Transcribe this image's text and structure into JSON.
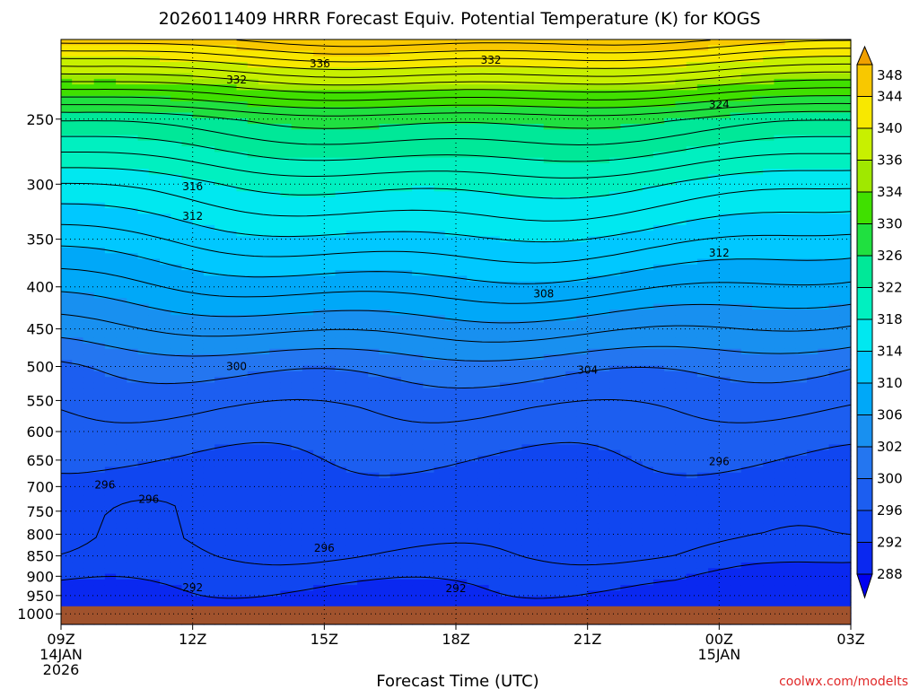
{
  "chart_data": {
    "type": "heatmap",
    "title": "2026011409 HRRR Forecast Equiv. Potential Temperature (K) for KOGS",
    "xlabel": "Forecast Time (UTC)",
    "ylabel": "",
    "x_ticks": [
      {
        "hour": 0,
        "lines": [
          "09Z",
          "14JAN",
          "2026"
        ]
      },
      {
        "hour": 3,
        "lines": [
          "12Z"
        ]
      },
      {
        "hour": 6,
        "lines": [
          "15Z"
        ]
      },
      {
        "hour": 9,
        "lines": [
          "18Z"
        ]
      },
      {
        "hour": 12,
        "lines": [
          "21Z"
        ]
      },
      {
        "hour": 15,
        "lines": [
          "00Z",
          "15JAN"
        ]
      },
      {
        "hour": 18,
        "lines": [
          "03Z"
        ]
      }
    ],
    "xlim_hours": [
      0,
      18
    ],
    "y_scale": "log",
    "y_ticks": [
      250,
      300,
      350,
      400,
      450,
      500,
      550,
      600,
      650,
      700,
      750,
      800,
      850,
      900,
      950,
      1000
    ],
    "ylim": [
      1030,
      200
    ],
    "surface_pressure_hpa": 979,
    "surface_color": "#a0522d",
    "colorbar": {
      "levels": [
        288,
        292,
        296,
        300,
        302,
        306,
        310,
        314,
        318,
        322,
        326,
        330,
        334,
        336,
        340,
        344,
        348
      ],
      "labels": [
        "288",
        "292",
        "296",
        "300",
        "302",
        "306",
        "310",
        "314",
        "318",
        "322",
        "326",
        "330",
        "334",
        "336",
        "340",
        "344",
        "348"
      ],
      "colors": [
        "#0000f0",
        "#0a28f0",
        "#1046f0",
        "#1c5ef0",
        "#2476f0",
        "#1890f0",
        "#00a8f8",
        "#00c8ff",
        "#00e8f0",
        "#00f0c0",
        "#00e898",
        "#20e040",
        "#40e000",
        "#a0e800",
        "#c8f000",
        "#f8e800",
        "#f8c800",
        "#f0a000"
      ]
    },
    "theta_e_profile_start": [
      {
        "p": 980,
        "theta_e": 291
      },
      {
        "p": 925,
        "theta_e": 292
      },
      {
        "p": 850,
        "theta_e": 294
      },
      {
        "p": 800,
        "theta_e": 295
      },
      {
        "p": 700,
        "theta_e": 295
      },
      {
        "p": 600,
        "theta_e": 297
      },
      {
        "p": 500,
        "theta_e": 300
      },
      {
        "p": 400,
        "theta_e": 307
      },
      {
        "p": 350,
        "theta_e": 311
      },
      {
        "p": 300,
        "theta_e": 316
      },
      {
        "p": 250,
        "theta_e": 324
      },
      {
        "p": 210,
        "theta_e": 340
      }
    ],
    "contour_labels": [
      {
        "text": "336",
        "hour": 5.9,
        "p": 214
      },
      {
        "text": "332",
        "hour": 9.8,
        "p": 212
      },
      {
        "text": "332",
        "hour": 4.0,
        "p": 224
      },
      {
        "text": "324",
        "hour": 15.0,
        "p": 240
      },
      {
        "text": "316",
        "hour": 3.0,
        "p": 302
      },
      {
        "text": "312",
        "hour": 3.0,
        "p": 328
      },
      {
        "text": "312",
        "hour": 15.0,
        "p": 364
      },
      {
        "text": "308",
        "hour": 11.0,
        "p": 408
      },
      {
        "text": "300",
        "hour": 4.0,
        "p": 500
      },
      {
        "text": "304",
        "hour": 12.0,
        "p": 505
      },
      {
        "text": "296",
        "hour": 15.0,
        "p": 653
      },
      {
        "text": "296",
        "hour": 1.0,
        "p": 697
      },
      {
        "text": "296",
        "hour": 2.0,
        "p": 725
      },
      {
        "text": "296",
        "hour": 6.0,
        "p": 832
      },
      {
        "text": "292",
        "hour": 3.0,
        "p": 929
      },
      {
        "text": "292",
        "hour": 9.0,
        "p": 932
      }
    ]
  },
  "credit": "coolwx.com/modelts"
}
